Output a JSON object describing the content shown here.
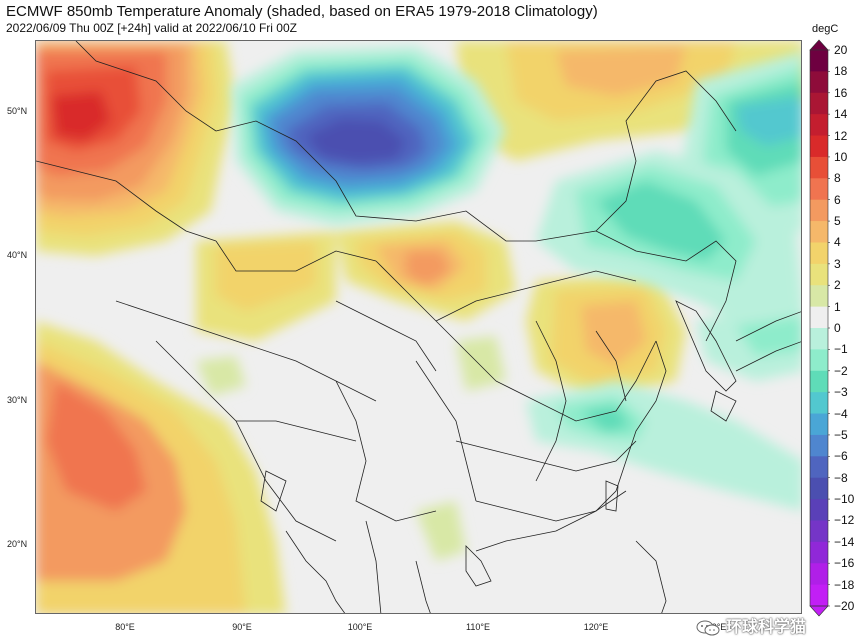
{
  "title": "ECMWF 850mb Temperature Anomaly (shaded, based on ERA5 1979-2018 Climatology)",
  "subtitle": "2022/06/09 Thu 00Z [+24h] valid at 2022/06/10 Fri 00Z",
  "lat_labels": [
    "50°N",
    "40°N",
    "30°N",
    "20°N"
  ],
  "lon_labels": [
    "80°E",
    "90°E",
    "100°E",
    "110°E",
    "120°E",
    "130°E"
  ],
  "colorbar": {
    "unit": "degC",
    "ticks": [
      "20",
      "18",
      "16",
      "14",
      "12",
      "10",
      "8",
      "6",
      "5",
      "4",
      "3",
      "2",
      "1",
      "0",
      "−1",
      "−2",
      "−3",
      "−4",
      "−5",
      "−6",
      "−8",
      "−10",
      "−12",
      "−14",
      "−16",
      "−18",
      "−20"
    ],
    "colors": [
      "#6e0040",
      "#8e0c3a",
      "#aa1634",
      "#c41e2f",
      "#d92a2a",
      "#e84f37",
      "#f07450",
      "#f39a60",
      "#f5b86a",
      "#f2d36b",
      "#e9e27c",
      "#d8e8a6",
      "#efefef",
      "#b9f0dc",
      "#8eeccb",
      "#5fdcb8",
      "#52c8cf",
      "#4aa6d6",
      "#4f86cf",
      "#4f65bf",
      "#4b4fb0",
      "#5a40b8",
      "#7535c7",
      "#9028d8",
      "#b01fe8",
      "#c21ff5"
    ]
  },
  "watermark": "环球科学猫",
  "icons": {
    "wechat": "wechat-icon"
  }
}
